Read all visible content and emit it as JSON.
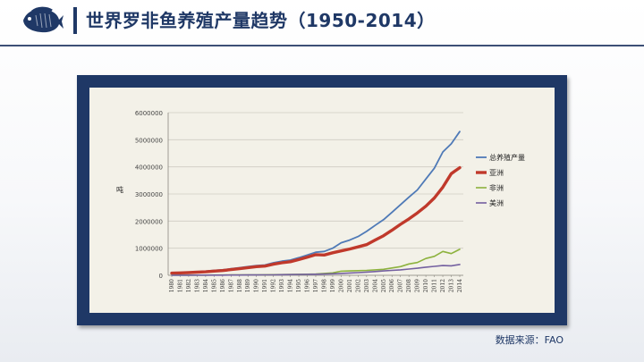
{
  "header": {
    "title": "世界罗非鱼养殖产量趋势（1950-2014）",
    "logo_icon": "tilapia-fish-icon"
  },
  "footer": {
    "source": "数据来源：FAO"
  },
  "colors": {
    "primary": "#1f3866",
    "total": "#4f7ab7",
    "asia": "#c0392b",
    "africa": "#8db23e",
    "america": "#7460a0"
  },
  "chart_data": {
    "type": "line",
    "title": "",
    "xlabel": "",
    "ylabel": "吨",
    "ylim": [
      0,
      6000000
    ],
    "yticks": [
      "0",
      "1000000",
      "2000000",
      "3000000",
      "4000000",
      "5000000",
      "6000000"
    ],
    "x": [
      "1980",
      "1981",
      "1982",
      "1983",
      "1984",
      "1985",
      "1986",
      "1987",
      "1988",
      "1989",
      "1990",
      "1991",
      "1992",
      "1993",
      "1994",
      "1995",
      "1996",
      "1997",
      "1998",
      "1999",
      "2000",
      "2001",
      "2002",
      "2003",
      "2004",
      "2005",
      "2006",
      "2007",
      "2008",
      "2009",
      "2010",
      "2011",
      "2012",
      "2013",
      "2014"
    ],
    "grid": true,
    "legend_position": "right",
    "series": [
      {
        "name": "总养殖产量",
        "color_key": "total",
        "values": [
          90000,
          100000,
          110000,
          130000,
          150000,
          180000,
          200000,
          240000,
          280000,
          320000,
          360000,
          380000,
          460000,
          520000,
          560000,
          650000,
          750000,
          850000,
          880000,
          1000000,
          1200000,
          1300000,
          1430000,
          1620000,
          1840000,
          2050000,
          2320000,
          2600000,
          2880000,
          3150000,
          3550000,
          3950000,
          4550000,
          4850000,
          5300000
        ]
      },
      {
        "name": "亚洲",
        "color_key": "asia",
        "values": [
          80000,
          90000,
          100000,
          115000,
          130000,
          155000,
          175000,
          210000,
          245000,
          285000,
          320000,
          340000,
          410000,
          460000,
          500000,
          580000,
          670000,
          760000,
          750000,
          830000,
          900000,
          970000,
          1050000,
          1130000,
          1300000,
          1460000,
          1660000,
          1880000,
          2080000,
          2300000,
          2550000,
          2850000,
          3250000,
          3750000,
          3970000
        ]
      },
      {
        "name": "非洲",
        "color_key": "africa",
        "values": [
          5000,
          5000,
          6000,
          7000,
          8000,
          9000,
          10000,
          12000,
          14000,
          16000,
          18000,
          20000,
          24000,
          28000,
          32000,
          36000,
          40000,
          50000,
          70000,
          90000,
          150000,
          160000,
          170000,
          180000,
          200000,
          220000,
          270000,
          320000,
          420000,
          470000,
          620000,
          700000,
          880000,
          800000,
          960000
        ]
      },
      {
        "name": "美洲",
        "color_key": "america",
        "values": [
          3000,
          3000,
          4000,
          5000,
          6000,
          7000,
          8000,
          9000,
          10000,
          12000,
          14000,
          16000,
          18000,
          22000,
          26000,
          30000,
          35000,
          40000,
          45000,
          55000,
          70000,
          85000,
          100000,
          120000,
          140000,
          160000,
          180000,
          200000,
          230000,
          260000,
          300000,
          330000,
          360000,
          350000,
          400000
        ]
      }
    ]
  }
}
